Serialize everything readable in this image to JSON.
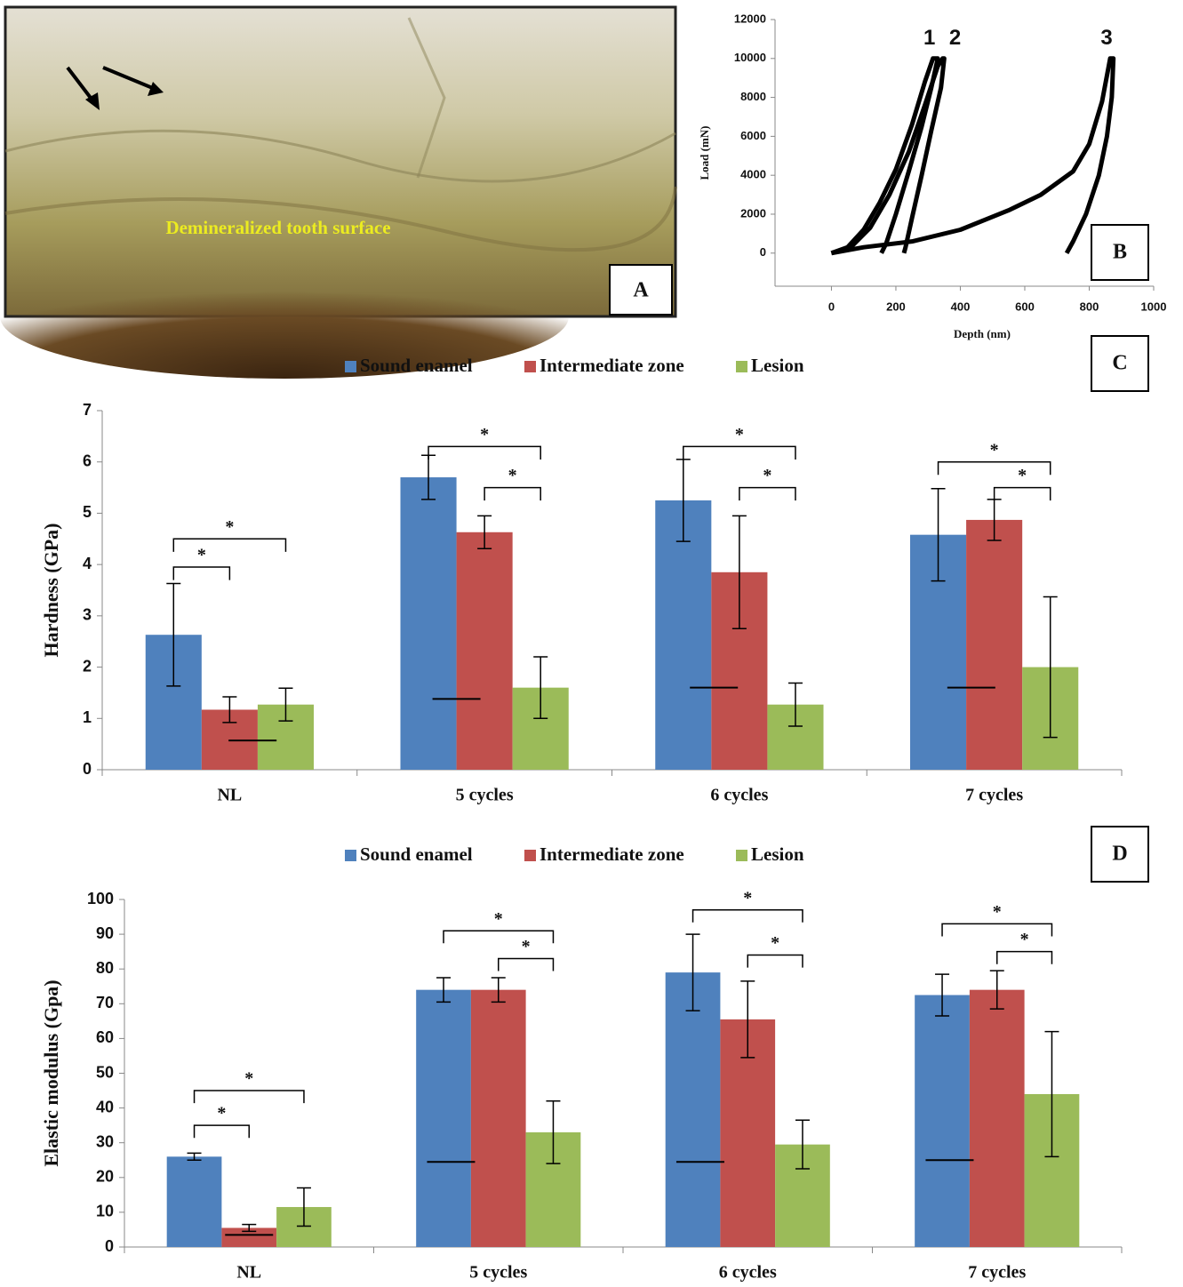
{
  "image": {
    "caption": "Demineralized tooth surface",
    "panel_label": "A"
  },
  "chart_data": [
    {
      "type": "line",
      "panel_label": "B",
      "x_label": "Depth (nm)",
      "y_label": "Load (mN)",
      "xlim": [
        -175,
        1000
      ],
      "xticks": [
        0,
        200,
        400,
        600,
        800,
        1000
      ],
      "ylim": [
        -1700,
        12000
      ],
      "yticks": [
        0,
        2000,
        4000,
        6000,
        8000,
        10000,
        12000
      ],
      "series": [
        {
          "name": "1",
          "color": "#000000",
          "x": [
            0,
            50,
            100,
            150,
            200,
            250,
            290,
            315,
            330,
            310,
            280,
            240,
            200,
            170,
            155
          ],
          "values": [
            0,
            300,
            1200,
            2600,
            4300,
            6600,
            8800,
            10000,
            10000,
            8500,
            6500,
            4200,
            2000,
            500,
            0
          ]
        },
        {
          "name": "2",
          "color": "#000000",
          "x": [
            0,
            60,
            120,
            180,
            240,
            290,
            330,
            345,
            350,
            340,
            310,
            280,
            250,
            230,
            225
          ],
          "values": [
            0,
            300,
            1300,
            3000,
            5200,
            7600,
            9600,
            10000,
            10000,
            8500,
            6300,
            4000,
            1800,
            300,
            0
          ]
        },
        {
          "name": "3",
          "color": "#000000",
          "x": [
            0,
            100,
            250,
            400,
            550,
            650,
            750,
            800,
            840,
            865,
            875,
            870,
            855,
            830,
            790,
            750,
            730
          ],
          "values": [
            0,
            300,
            600,
            1200,
            2200,
            3000,
            4200,
            5600,
            7800,
            10000,
            10000,
            8000,
            6000,
            4000,
            2000,
            600,
            0
          ]
        }
      ]
    },
    {
      "type": "bar",
      "panel_label": "C",
      "y_label": "Hardness (GPa)",
      "categories": [
        "NL",
        "5 cycles",
        "6 cycles",
        "7 cycles"
      ],
      "ylim": [
        0,
        7
      ],
      "yticks": [
        0,
        1,
        2,
        3,
        4,
        5,
        6,
        7
      ],
      "series": [
        {
          "name": "Sound enamel",
          "color": "#4f81bd",
          "values": [
            2.63,
            5.7,
            5.25,
            4.58
          ],
          "errors": [
            1.0,
            0.43,
            0.8,
            0.9
          ]
        },
        {
          "name": "Intermediate zone",
          "color": "#c0504d",
          "values": [
            1.17,
            4.63,
            3.85,
            4.87
          ],
          "errors": [
            0.25,
            0.32,
            1.1,
            0.4
          ]
        },
        {
          "name": "Lesion",
          "color": "#9bbb59",
          "values": [
            1.27,
            1.6,
            1.27,
            2.0
          ],
          "errors": [
            0.32,
            0.6,
            0.42,
            1.37
          ]
        }
      ],
      "markers": [
        0.57,
        1.38,
        1.6,
        1.6
      ],
      "brackets": [
        {
          "category": 0,
          "from": 0,
          "to": 1,
          "y": 3.95,
          "label": "*"
        },
        {
          "category": 0,
          "from": 0,
          "to": 2,
          "y": 4.5,
          "label": "*"
        },
        {
          "category": 1,
          "from": 0,
          "to": 2,
          "y": 6.3,
          "label": "*"
        },
        {
          "category": 1,
          "from": 1,
          "to": 2,
          "y": 5.5,
          "label": "*"
        },
        {
          "category": 2,
          "from": 0,
          "to": 2,
          "y": 6.3,
          "label": "*"
        },
        {
          "category": 2,
          "from": 1,
          "to": 2,
          "y": 5.5,
          "label": "*"
        },
        {
          "category": 3,
          "from": 0,
          "to": 2,
          "y": 6.0,
          "label": "*"
        },
        {
          "category": 3,
          "from": 1,
          "to": 2,
          "y": 5.5,
          "label": "*"
        }
      ]
    },
    {
      "type": "bar",
      "panel_label": "D",
      "y_label": "Elastic modulus (Gpa)",
      "categories": [
        "NL",
        "5 cycles",
        "6 cycles",
        "7 cycles"
      ],
      "ylim": [
        0,
        100
      ],
      "yticks": [
        0,
        10,
        20,
        30,
        40,
        50,
        60,
        70,
        80,
        90,
        100
      ],
      "series": [
        {
          "name": "Sound enamel",
          "color": "#4f81bd",
          "values": [
            26,
            74,
            79,
            72.5
          ],
          "errors": [
            1,
            3.5,
            11,
            6
          ]
        },
        {
          "name": "Intermediate zone",
          "color": "#c0504d",
          "values": [
            5.5,
            74,
            65.5,
            74
          ],
          "errors": [
            1,
            3.5,
            11,
            5.5
          ]
        },
        {
          "name": "Lesion",
          "color": "#9bbb59",
          "values": [
            11.5,
            33,
            29.5,
            44
          ],
          "errors": [
            5.5,
            9,
            7,
            18
          ]
        }
      ],
      "markers": [
        3.5,
        24.5,
        24.5,
        25
      ],
      "brackets": [
        {
          "category": 0,
          "from": 0,
          "to": 1,
          "y": 35,
          "label": "*"
        },
        {
          "category": 0,
          "from": 0,
          "to": 2,
          "y": 45,
          "label": "*"
        },
        {
          "category": 1,
          "from": 0,
          "to": 2,
          "y": 91,
          "label": "*"
        },
        {
          "category": 1,
          "from": 1,
          "to": 2,
          "y": 83,
          "label": "*"
        },
        {
          "category": 2,
          "from": 0,
          "to": 2,
          "y": 97,
          "label": "*"
        },
        {
          "category": 2,
          "from": 1,
          "to": 2,
          "y": 84,
          "label": "*"
        },
        {
          "category": 3,
          "from": 0,
          "to": 2,
          "y": 93,
          "label": "*"
        },
        {
          "category": 3,
          "from": 1,
          "to": 2,
          "y": 85,
          "label": "*"
        }
      ]
    }
  ]
}
